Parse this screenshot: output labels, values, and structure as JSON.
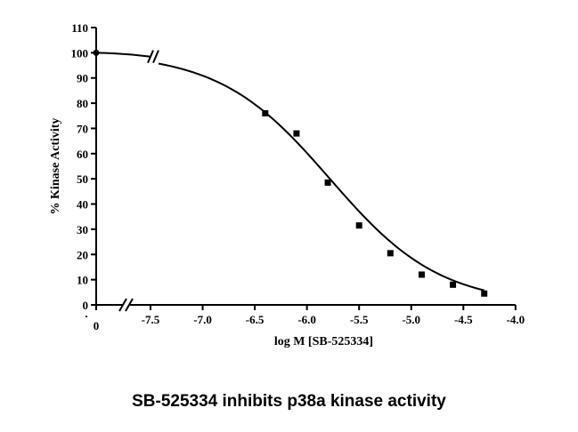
{
  "caption": "SB-525334  inhibits p38a kinase activity",
  "chart_data": {
    "type": "scatter",
    "title": "",
    "xlabel": "log M [SB-525334]",
    "ylabel": "% Kinase Activity",
    "xlim": [
      -7.8,
      -4.0
    ],
    "ylim": [
      0,
      110
    ],
    "x_axis_break": true,
    "y_axis_break": true,
    "x_zero_label": "0",
    "x_dot_label": "·",
    "x_ticks": [
      -7.5,
      -7.0,
      -6.5,
      -6.0,
      -5.5,
      -5.0,
      -4.5,
      -4.0
    ],
    "x_tick_labels": [
      "-7.5",
      "-7.0",
      "-6.5",
      "-6.0",
      "-5.5",
      "-5.0",
      "-4.5",
      "-4.0"
    ],
    "y_ticks": [
      0,
      10,
      20,
      30,
      40,
      50,
      60,
      70,
      80,
      90,
      100,
      110
    ],
    "y_tick_labels": [
      "0",
      "10",
      "20",
      "30",
      "40",
      "50",
      "60",
      "70",
      "80",
      "90",
      "100",
      "110"
    ],
    "series": [
      {
        "points": [
          {
            "x": -6.4,
            "y": 76
          },
          {
            "x": -6.1,
            "y": 68
          },
          {
            "x": -5.8,
            "y": 48.5
          },
          {
            "x": -5.5,
            "y": 31.5
          },
          {
            "x": -5.2,
            "y": 20.5
          },
          {
            "x": -4.9,
            "y": 12
          },
          {
            "x": -4.6,
            "y": 8
          },
          {
            "x": -4.3,
            "y": 4.5
          }
        ],
        "control_point": {
          "x": "0",
          "y": 100
        }
      }
    ],
    "fit_curve": {
      "type": "sigmoid",
      "top": 100,
      "bottom": 0,
      "log_ic50": -5.78,
      "hill_slope": -0.82
    },
    "grid": false
  }
}
